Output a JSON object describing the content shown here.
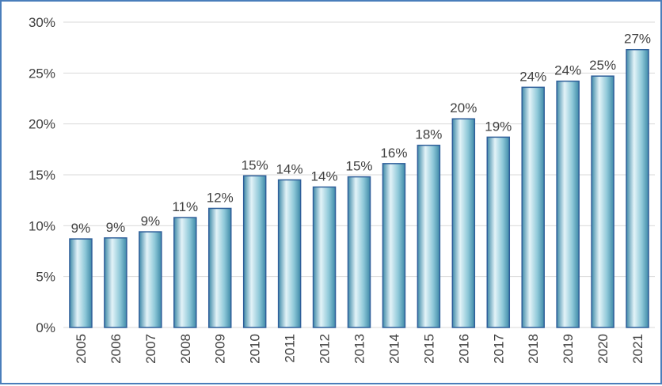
{
  "chart_data": {
    "type": "bar",
    "title": "",
    "xlabel": "",
    "ylabel": "",
    "categories": [
      "2005",
      "2006",
      "2007",
      "2008",
      "2009",
      "2010",
      "2011",
      "2012",
      "2013",
      "2014",
      "2015",
      "2016",
      "2017",
      "2018",
      "2019",
      "2020",
      "2021"
    ],
    "values": [
      8.7,
      8.8,
      9.4,
      10.8,
      11.7,
      14.9,
      14.5,
      13.8,
      14.8,
      16.1,
      17.9,
      20.5,
      18.7,
      23.6,
      24.2,
      24.7,
      27.3
    ],
    "data_labels": [
      "9%",
      "9%",
      "9%",
      "11%",
      "12%",
      "15%",
      "14%",
      "14%",
      "15%",
      "16%",
      "18%",
      "20%",
      "19%",
      "24%",
      "24%",
      "25%",
      "27%"
    ],
    "ylim": [
      0,
      30
    ],
    "y_ticks": [
      0,
      5,
      10,
      15,
      20,
      25,
      30
    ],
    "y_tick_labels": [
      "0%",
      "5%",
      "10%",
      "15%",
      "20%",
      "25%",
      "30%"
    ],
    "grid": true,
    "legend": "none",
    "colors": {
      "bar_light": "#e3f3f8",
      "bar_mid": "#8ec8d8",
      "bar_dark": "#3f8aa8",
      "bar_border": "#2f5f9a",
      "frame": "#4a7ebb"
    }
  }
}
